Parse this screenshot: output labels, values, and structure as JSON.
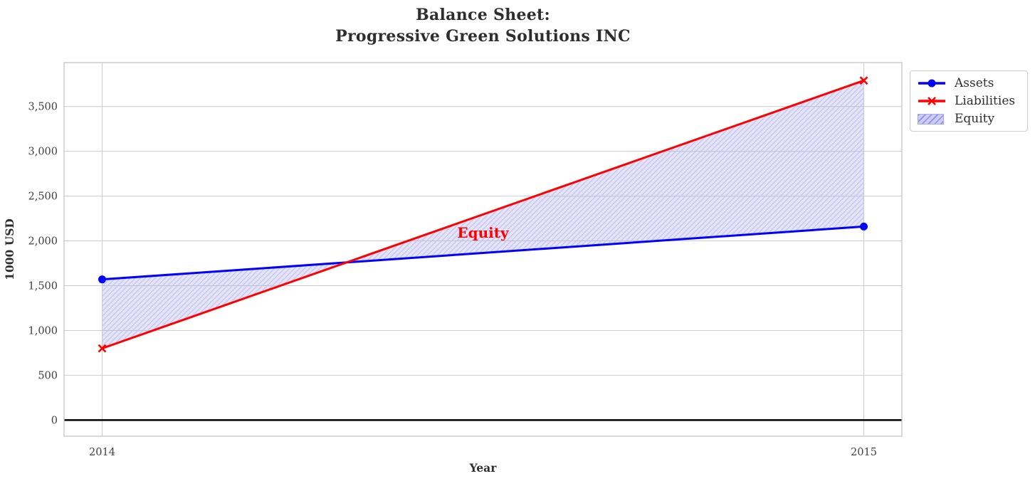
{
  "header": {
    "title_line1": "Balance Sheet:",
    "title_line2": "Progressive Green Solutions INC"
  },
  "chart_data": {
    "type": "line",
    "title": "Balance Sheet:\nProgressive Green Solutions INC",
    "xlabel": "Year",
    "ylabel": "1000 USD",
    "x": [
      2014,
      2015
    ],
    "x_tick_labels": [
      "2014",
      "2015"
    ],
    "y_ticks": [
      0,
      500,
      1000,
      1500,
      2000,
      2500,
      3000,
      3500
    ],
    "y_tick_labels": [
      "0",
      "500",
      "1,000",
      "1,500",
      "2,000",
      "2,500",
      "3,000",
      "3,500"
    ],
    "xlim": [
      2013.95,
      2015.05
    ],
    "ylim": [
      -180,
      3990
    ],
    "grid": true,
    "zero_line_y": 0,
    "series": [
      {
        "name": "Assets",
        "values": [
          1570,
          2160
        ],
        "color": "#0000ff",
        "marker": "circle"
      },
      {
        "name": "Liabilities",
        "values": [
          800,
          3790
        ],
        "color": "#ff0000",
        "marker": "x"
      }
    ],
    "fill_between": {
      "label": "Equity",
      "between": [
        "Assets",
        "Liabilities"
      ],
      "hatch": "//",
      "base_color": "rgba(160,160,235,0.28)",
      "hatch_color": "#c3c3ee"
    },
    "annotation": {
      "text": "Equity",
      "x": 2014.5,
      "y": 2090,
      "color": "#ff0000"
    },
    "legend": {
      "position": "outside-upper-right",
      "entries": [
        {
          "label": "Assets",
          "swatch": "line-circle",
          "color": "#0000ff"
        },
        {
          "label": "Liabilities",
          "swatch": "line-x",
          "color": "#ff0000"
        },
        {
          "label": "Equity",
          "swatch": "hatch-patch",
          "fill": "#ccccf7",
          "hatch": "#8f8fe8",
          "edge": "#a9a9f2"
        }
      ]
    },
    "colors": {
      "grid": "#cccccc",
      "spine": "#c2c2c2",
      "zero_line": "#000000",
      "title": "#2e2e2e",
      "tick_label": "#3f3f3f",
      "axis_label": "#2e2e2e"
    }
  }
}
